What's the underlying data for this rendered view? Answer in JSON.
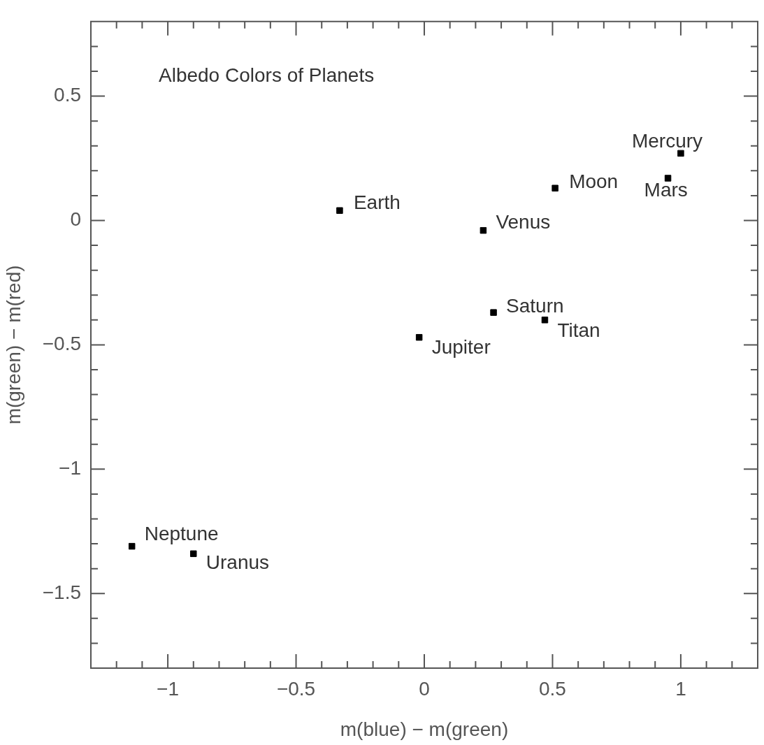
{
  "chart_data": {
    "type": "scatter",
    "title": "Albedo Colors of Planets",
    "xlabel": "m(blue) − m(green)",
    "ylabel": "m(green) − m(red)",
    "marker": "square",
    "grid": false,
    "legend": false,
    "xlim": [
      -1.3,
      1.3
    ],
    "ylim": [
      -1.8,
      0.8
    ],
    "xticks": [
      {
        "value": -1.2,
        "label": null
      },
      {
        "value": -1.1,
        "label": null
      },
      -1,
      {
        "value": -0.9,
        "label": null
      },
      {
        "value": -0.8,
        "label": null
      },
      {
        "value": -0.7,
        "label": null
      },
      {
        "value": -0.6,
        "label": null
      },
      -0.5,
      {
        "value": -0.4,
        "label": null
      },
      {
        "value": -0.3,
        "label": null
      },
      {
        "value": -0.2,
        "label": null
      },
      {
        "value": -0.1,
        "label": null
      },
      0,
      {
        "value": 0.1,
        "label": null
      },
      {
        "value": 0.2,
        "label": null
      },
      {
        "value": 0.3,
        "label": null
      },
      {
        "value": 0.4,
        "label": null
      },
      0.5,
      {
        "value": 0.6,
        "label": null
      },
      {
        "value": 0.7,
        "label": null
      },
      {
        "value": 0.8,
        "label": null
      },
      {
        "value": 0.9,
        "label": null
      },
      1,
      {
        "value": 1.1,
        "label": null
      },
      {
        "value": 1.2,
        "label": null
      }
    ],
    "yticks": [
      {
        "value": -1.7,
        "label": null
      },
      {
        "value": -1.6,
        "label": null
      },
      -1.5,
      {
        "value": -1.4,
        "label": null
      },
      {
        "value": -1.3,
        "label": null
      },
      {
        "value": -1.2,
        "label": null
      },
      {
        "value": -1.1,
        "label": null
      },
      -1,
      {
        "value": -0.9,
        "label": null
      },
      {
        "value": -0.8,
        "label": null
      },
      {
        "value": -0.7,
        "label": null
      },
      {
        "value": -0.6,
        "label": null
      },
      -0.5,
      {
        "value": -0.4,
        "label": null
      },
      {
        "value": -0.3,
        "label": null
      },
      {
        "value": -0.2,
        "label": null
      },
      {
        "value": -0.1,
        "label": null
      },
      0,
      {
        "value": 0.1,
        "label": null
      },
      {
        "value": 0.2,
        "label": null
      },
      {
        "value": 0.3,
        "label": null
      },
      {
        "value": 0.4,
        "label": null
      },
      0.5,
      {
        "value": 0.6,
        "label": null
      },
      {
        "value": 0.7,
        "label": null
      }
    ],
    "series": [
      {
        "color": "#000000",
        "x": [
          1.0,
          0.95,
          0.51,
          -0.33,
          0.23,
          0.27,
          0.47,
          -0.02,
          -1.14,
          -0.9
        ],
        "values": [
          0.27,
          0.17,
          0.13,
          0.04,
          -0.04,
          -0.37,
          -0.4,
          -0.47,
          -1.31,
          -1.34
        ]
      }
    ],
    "annotations": [
      {
        "text": "Mercury",
        "x": 1.0,
        "y": 0.27
      },
      {
        "text": "Mars",
        "x": 0.95,
        "y": 0.17
      },
      {
        "text": "Moon",
        "x": 0.51,
        "y": 0.13
      },
      {
        "text": "Earth",
        "x": -0.33,
        "y": 0.04
      },
      {
        "text": "Venus",
        "x": 0.23,
        "y": -0.04
      },
      {
        "text": "Saturn",
        "x": 0.27,
        "y": -0.37
      },
      {
        "text": "Titan",
        "x": 0.47,
        "y": -0.4
      },
      {
        "text": "Jupiter",
        "x": -0.02,
        "y": -0.47
      },
      {
        "text": "Neptune",
        "x": -1.14,
        "y": -1.31
      },
      {
        "text": "Uranus",
        "x": -0.9,
        "y": -1.34
      }
    ]
  }
}
